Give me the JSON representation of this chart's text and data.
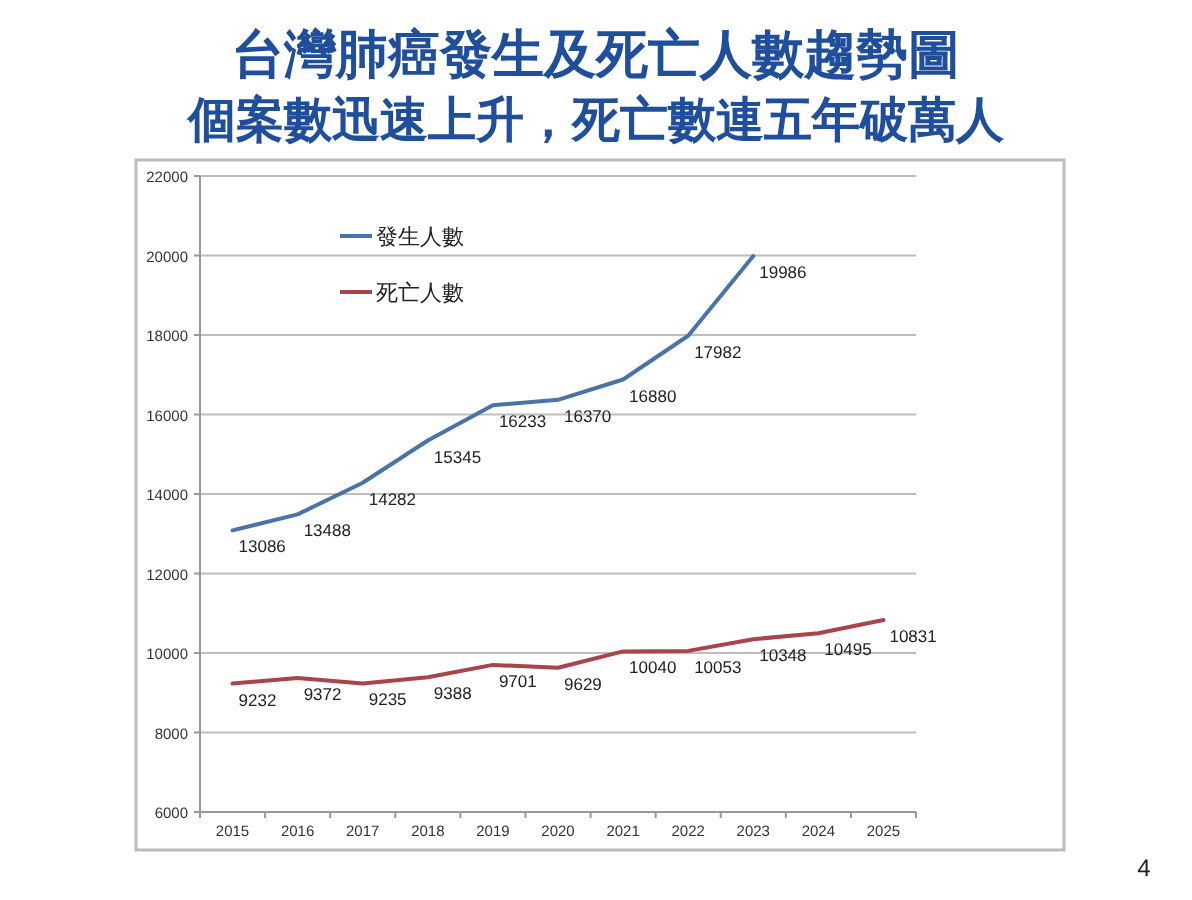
{
  "chart_data": {
    "type": "line",
    "title": "台灣肺癌發生及死亡人數趨勢圖",
    "subtitle": "個案數迅速上升，死亡數連五年破萬人",
    "categories": [
      "2015",
      "2016",
      "2017",
      "2018",
      "2019",
      "2020",
      "2021",
      "2022",
      "2023",
      "2024",
      "2025"
    ],
    "series": [
      {
        "name": "發生人數",
        "color": "#4a74a8",
        "values": [
          13086,
          13488,
          14282,
          15345,
          16233,
          16370,
          16880,
          17982,
          19986,
          null,
          null
        ]
      },
      {
        "name": "死亡人數",
        "color": "#a8444a",
        "values": [
          9232,
          9372,
          9235,
          9388,
          9701,
          9629,
          10040,
          10053,
          10348,
          10495,
          10831
        ]
      }
    ],
    "ylim": [
      6000,
      22000
    ],
    "yticks": [
      6000,
      8000,
      10000,
      12000,
      14000,
      16000,
      18000,
      20000,
      22000
    ],
    "grid": "y",
    "legend": "top left",
    "data_labels": true,
    "marker": "none",
    "line_style": "solid",
    "annotations": [
      "4"
    ]
  }
}
